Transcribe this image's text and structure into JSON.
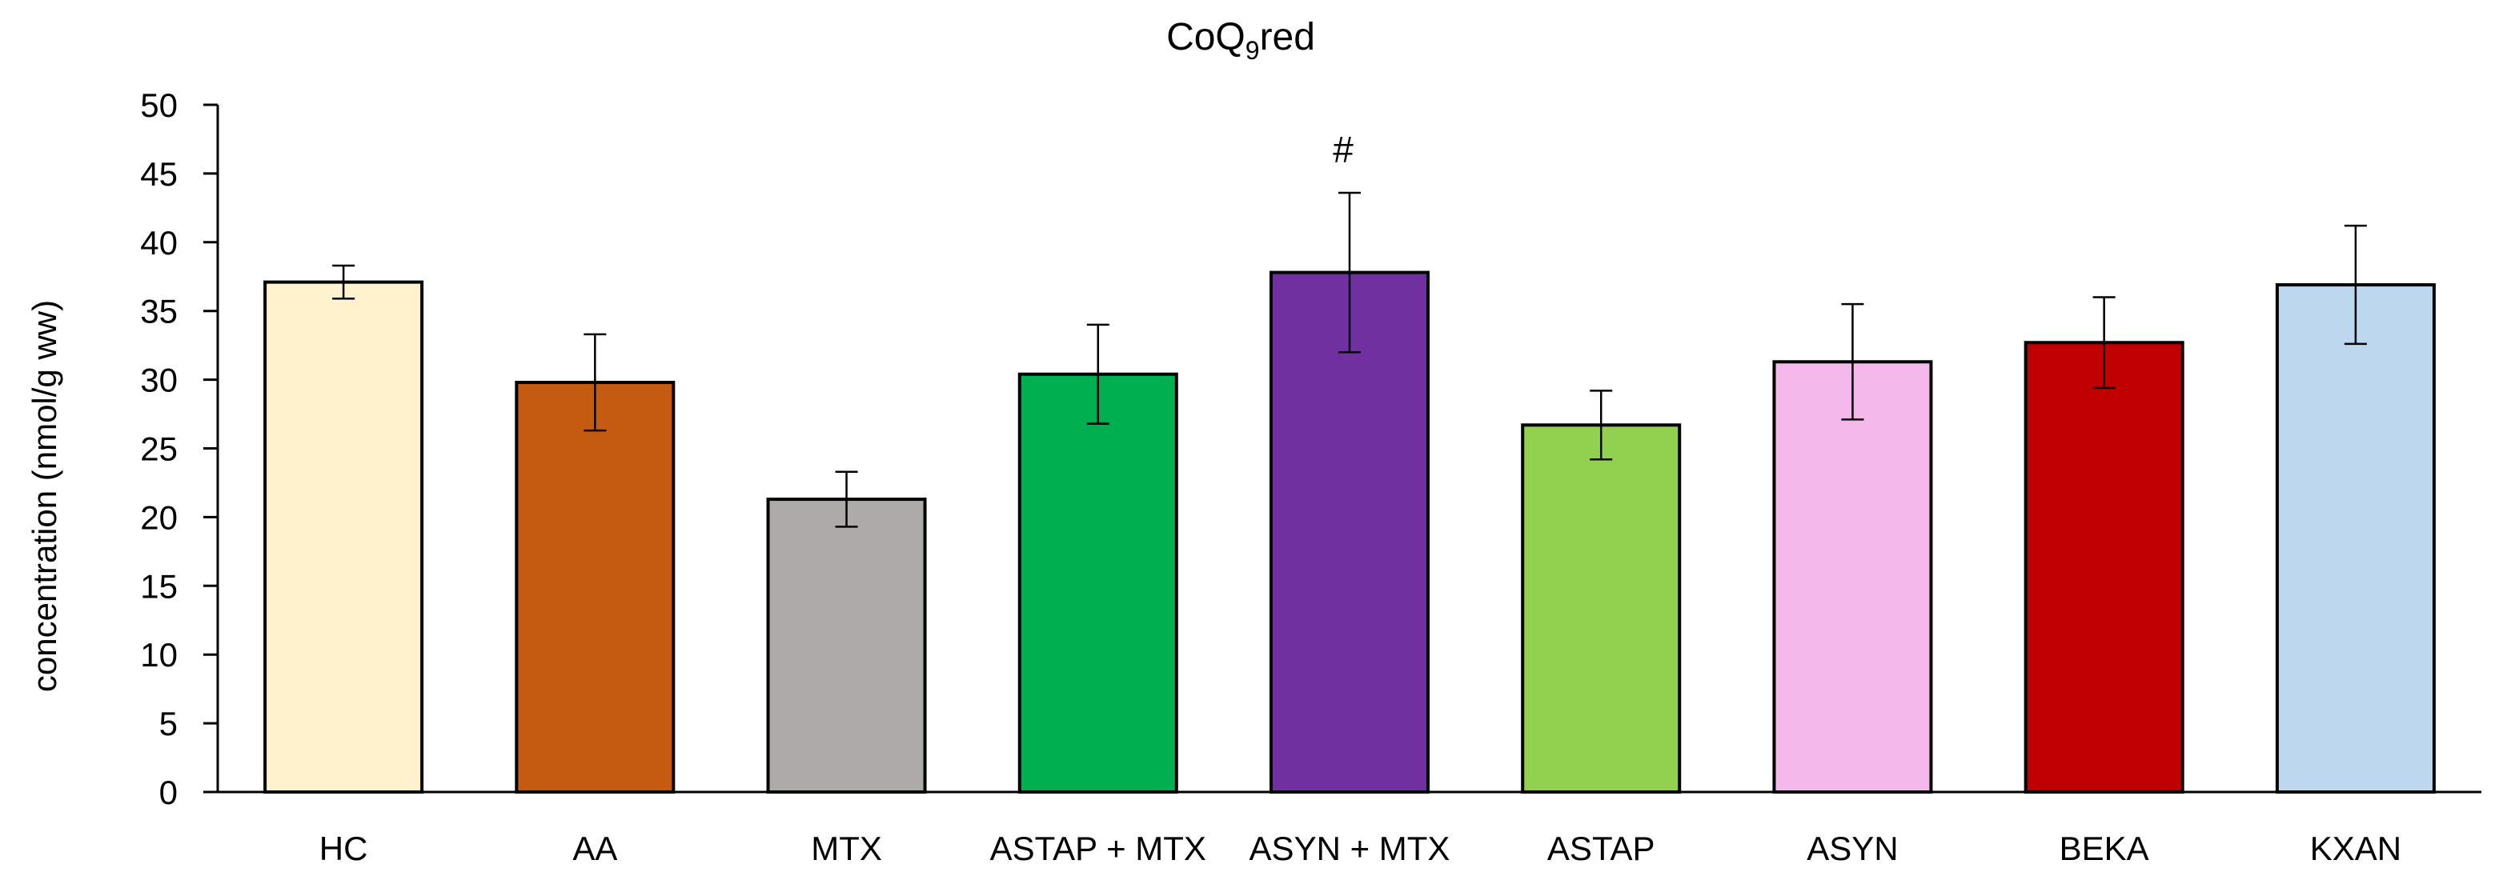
{
  "chart_data": {
    "type": "bar",
    "title": "CoQ",
    "title_subscript": "9",
    "title_suffix": "red",
    "xlabel": "",
    "ylabel": "concentration (nmol/g ww)",
    "ylim": [
      0,
      50
    ],
    "yticks": [
      "0",
      "5",
      "10",
      "15",
      "20",
      "25",
      "30",
      "35",
      "40",
      "45",
      "50"
    ],
    "grid": false,
    "categories": [
      "HC",
      "AA",
      "MTX",
      "ASTAP + MTX",
      "ASYN + MTX",
      "ASTAP",
      "ASYN",
      "BEKA",
      "KXAN"
    ],
    "values": [
      37.1,
      29.8,
      21.3,
      30.4,
      37.8,
      26.7,
      31.3,
      32.7,
      36.9
    ],
    "errors": [
      1.2,
      3.5,
      2.0,
      3.6,
      5.8,
      2.5,
      4.2,
      3.3,
      4.3
    ],
    "colors": [
      "#FFF2CC",
      "#C55A11",
      "#AEAAAA",
      "#00B050",
      "#7030A0",
      "#92D050",
      "#F4B8EA",
      "#C00000",
      "#BDD7EE"
    ],
    "annotations": [
      {
        "category": "ASYN + MTX",
        "text": "#"
      }
    ]
  }
}
